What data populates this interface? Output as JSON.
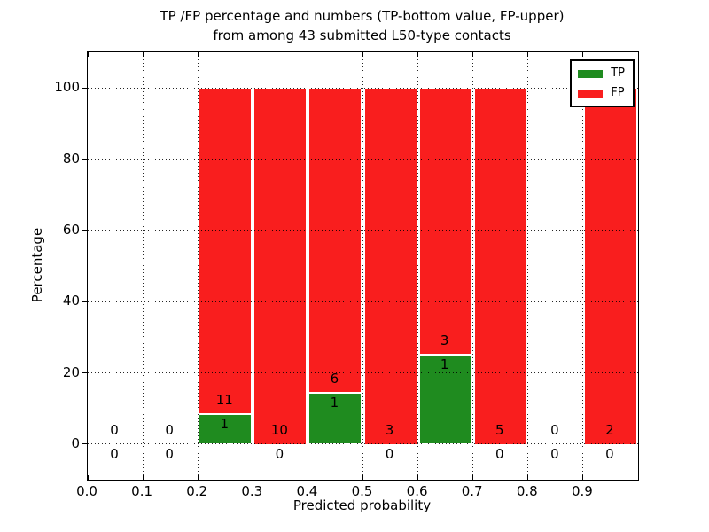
{
  "chart_data": {
    "type": "bar",
    "title_lines": [
      "TP /FP percentage and numbers (TP-bottom value, FP-upper)",
      "from among 43 submitted L50-type contacts"
    ],
    "xlabel": "Predicted probability",
    "ylabel": "Percentage",
    "xlim": [
      0.0,
      1.0
    ],
    "ylim": [
      -10,
      110
    ],
    "grid": "dotted, drawn above bars",
    "total_contacts": 43,
    "colors": {
      "tp": "#1f8b1f",
      "fp": "#f91e1e",
      "text": "#000000",
      "background": "#ffffff"
    },
    "yticks": [
      {
        "value": 0,
        "label": "0"
      },
      {
        "value": 20,
        "label": "20"
      },
      {
        "value": 40,
        "label": "40"
      },
      {
        "value": 60,
        "label": "60"
      },
      {
        "value": 80,
        "label": "80"
      },
      {
        "value": 100,
        "label": "100"
      }
    ],
    "xticks": [
      {
        "value": 0.0,
        "label": "0.0"
      },
      {
        "value": 0.1,
        "label": "0.1"
      },
      {
        "value": 0.2,
        "label": "0.2"
      },
      {
        "value": 0.3,
        "label": "0.3"
      },
      {
        "value": 0.4,
        "label": "0.4"
      },
      {
        "value": 0.5,
        "label": "0.5"
      },
      {
        "value": 0.6,
        "label": "0.6"
      },
      {
        "value": 0.7,
        "label": "0.7"
      },
      {
        "value": 0.8,
        "label": "0.8"
      },
      {
        "value": 0.9,
        "label": "0.9"
      }
    ],
    "legend": {
      "position": "upper right",
      "items": [
        {
          "label": "TP",
          "color": "#1f8b1f"
        },
        {
          "label": "FP",
          "color": "#f91e1e"
        }
      ]
    },
    "bins": [
      {
        "range": [
          0.0,
          0.1
        ],
        "tp_count": 0,
        "fp_count": 0,
        "tp_pct": 0,
        "fp_pct": 0,
        "bar": false
      },
      {
        "range": [
          0.1,
          0.2
        ],
        "tp_count": 0,
        "fp_count": 0,
        "tp_pct": 0,
        "fp_pct": 0,
        "bar": false
      },
      {
        "range": [
          0.2,
          0.3
        ],
        "tp_count": 1,
        "fp_count": 11,
        "tp_pct": 8.33,
        "fp_pct": 91.67,
        "bar": true
      },
      {
        "range": [
          0.3,
          0.4
        ],
        "tp_count": 0,
        "fp_count": 10,
        "tp_pct": 0,
        "fp_pct": 100,
        "bar": true
      },
      {
        "range": [
          0.4,
          0.5
        ],
        "tp_count": 1,
        "fp_count": 6,
        "tp_pct": 14.29,
        "fp_pct": 85.71,
        "bar": true
      },
      {
        "range": [
          0.5,
          0.6
        ],
        "tp_count": 0,
        "fp_count": 3,
        "tp_pct": 0,
        "fp_pct": 100,
        "bar": true
      },
      {
        "range": [
          0.6,
          0.7
        ],
        "tp_count": 1,
        "fp_count": 3,
        "tp_pct": 25,
        "fp_pct": 75,
        "bar": true
      },
      {
        "range": [
          0.7,
          0.8
        ],
        "tp_count": 0,
        "fp_count": 5,
        "tp_pct": 0,
        "fp_pct": 100,
        "bar": true
      },
      {
        "range": [
          0.8,
          0.9
        ],
        "tp_count": 0,
        "fp_count": 0,
        "tp_pct": 0,
        "fp_pct": 0,
        "bar": false
      },
      {
        "range": [
          0.9,
          1.0
        ],
        "tp_count": 0,
        "fp_count": 2,
        "tp_pct": 0,
        "fp_pct": 100,
        "bar": true
      }
    ]
  }
}
